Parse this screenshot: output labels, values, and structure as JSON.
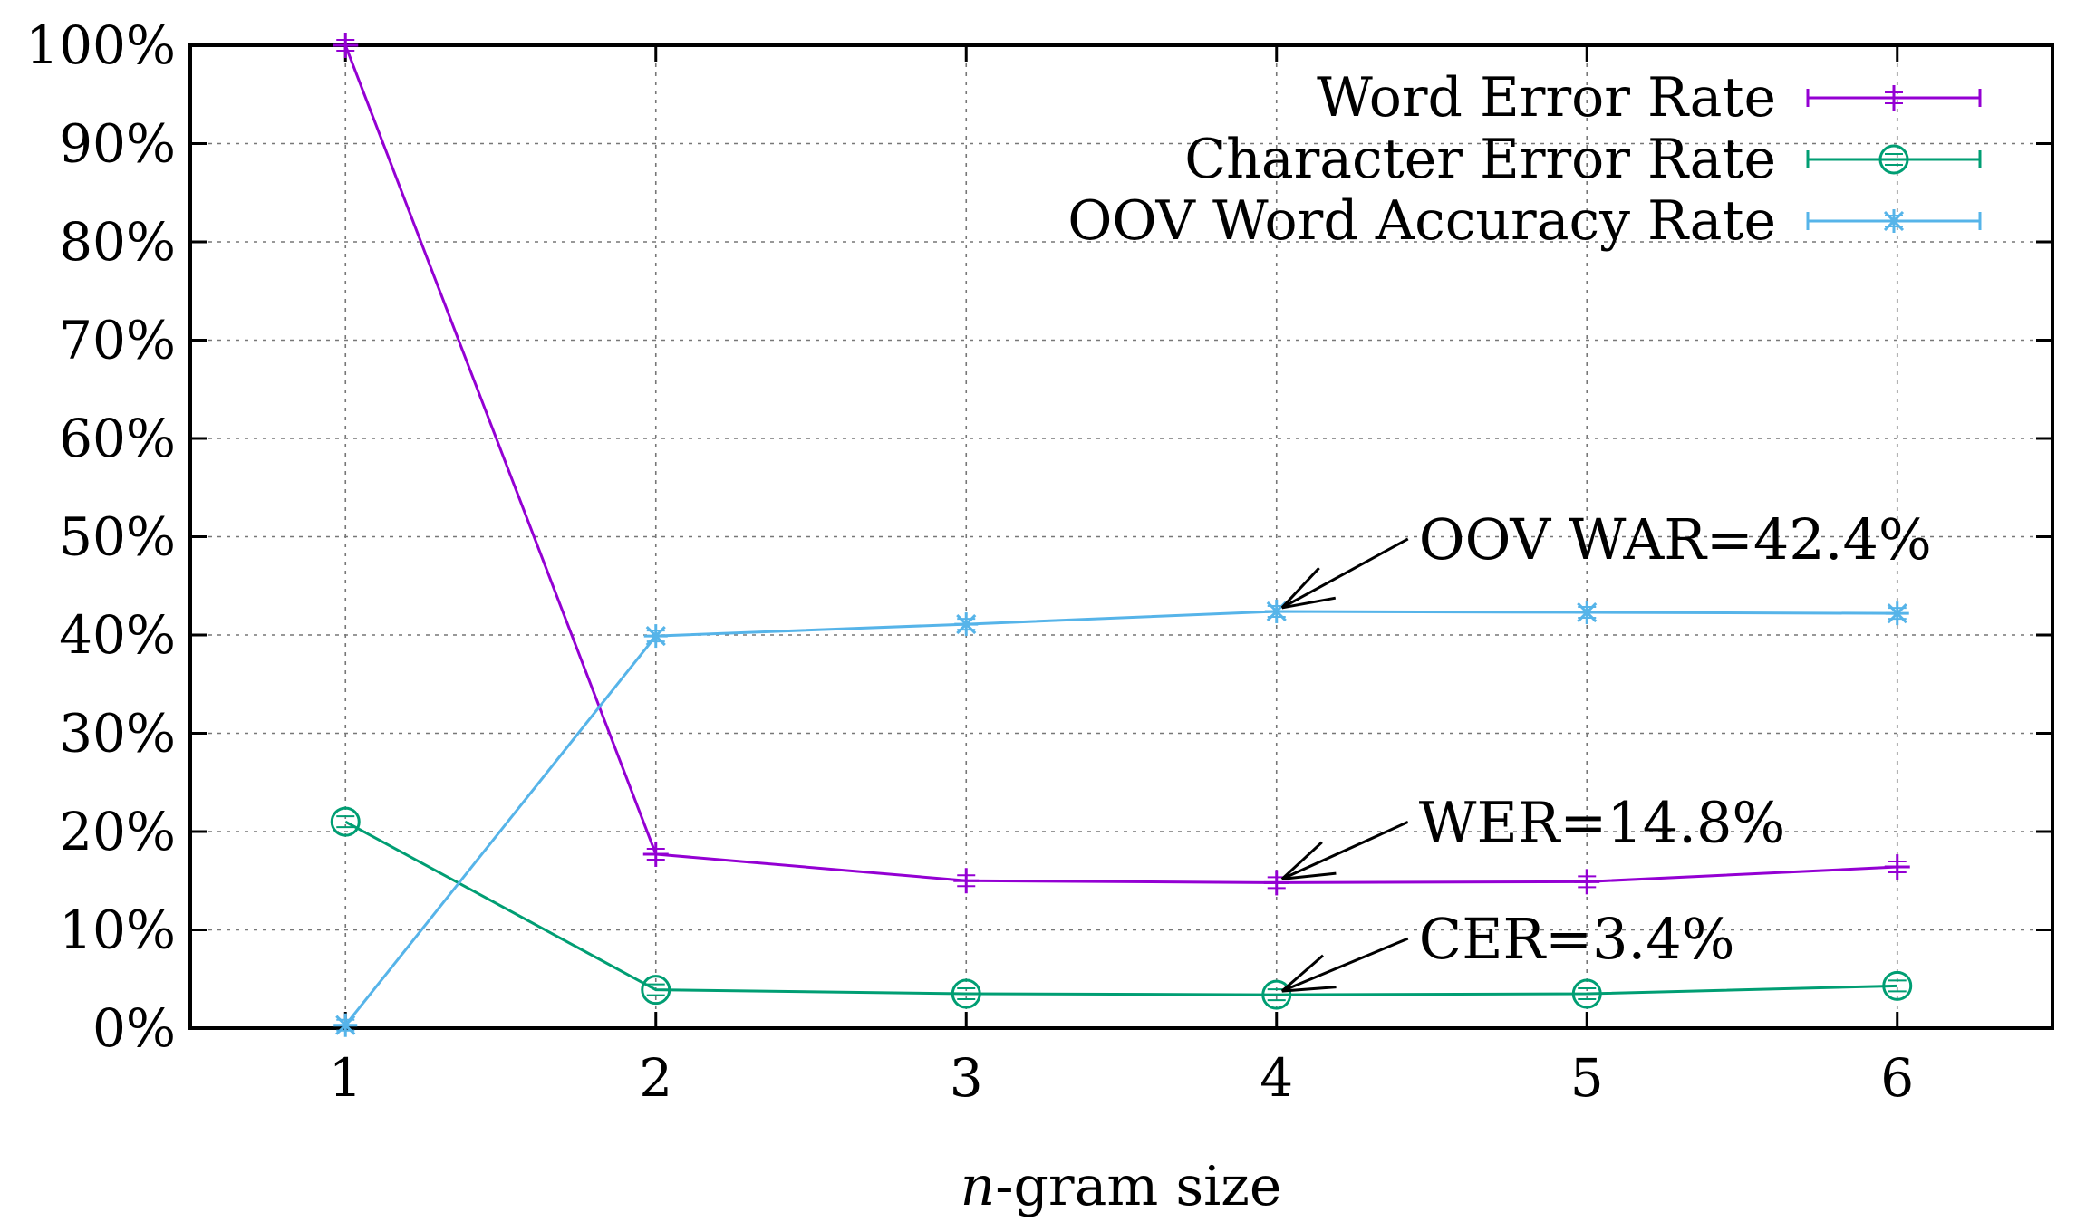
{
  "chart_data": {
    "type": "line",
    "title": "",
    "xlabel_prefix": "n",
    "xlabel_suffix": "-gram size",
    "ylabel": "",
    "x": [
      1,
      2,
      3,
      4,
      5,
      6
    ],
    "xlim": [
      0.5,
      6.5
    ],
    "ylim": [
      0,
      100
    ],
    "x_ticks": [
      "1",
      "2",
      "3",
      "4",
      "5",
      "6"
    ],
    "y_ticks": [
      "0%",
      "10%",
      "20%",
      "30%",
      "40%",
      "50%",
      "60%",
      "70%",
      "80%",
      "90%",
      "100%"
    ],
    "grid": true,
    "legend_position": "top-right",
    "series": [
      {
        "name": "Word Error Rate",
        "color": "#9400d3",
        "marker": "plus",
        "values": [
          100,
          17.7,
          15.0,
          14.8,
          14.9,
          16.4
        ]
      },
      {
        "name": "Character Error Rate",
        "color": "#009e73",
        "marker": "circle",
        "values": [
          21.0,
          3.9,
          3.5,
          3.4,
          3.5,
          4.3
        ]
      },
      {
        "name": "OOV Word Accuracy Rate",
        "color": "#56b4e9",
        "marker": "star",
        "values": [
          0.3,
          39.9,
          41.1,
          42.4,
          42.3,
          42.2
        ]
      }
    ],
    "annotations": [
      {
        "text": "OOV WAR=42.4%",
        "x": 4,
        "y": 42.4
      },
      {
        "text": "WER=14.8%",
        "x": 4,
        "y": 14.8
      },
      {
        "text": "CER=3.4%",
        "x": 4,
        "y": 3.4
      }
    ]
  }
}
